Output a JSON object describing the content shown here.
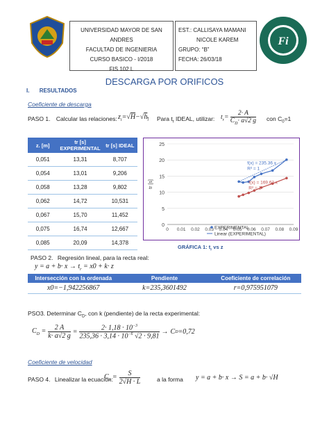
{
  "header": {
    "left_lines": [
      "UNIVERSIDAD MAYOR DE SAN ANDRES",
      "FACULTAD DE INGENIERIA",
      "CURSO BASICO - I/2018",
      "FIS 102 L"
    ],
    "right_lines": [
      "EST.:  CALLISAYA  MAMANI",
      "NICOLE  KAREM",
      "GRUPO:  “B”",
      "FECHA:  26/03/18"
    ]
  },
  "title": "DESCARGA POR ORIFICOS",
  "section": {
    "num": "I.",
    "label": "RESULTADOS"
  },
  "subtitle_descarga": "Coeficiente de descarga",
  "paso1": {
    "label": "PASO 1.",
    "text": "Calcular las relaciones:",
    "ideal": "Para t",
    "ideal2": " IDEAL, utilizar:",
    "tail": "con C",
    "tail2": "=1"
  },
  "table": {
    "headers": [
      "z. [m]",
      "tr [s] EXPERIMENTAL",
      "tr [s] IDEAL"
    ],
    "rows": [
      [
        "0,051",
        "13,31",
        "8,707"
      ],
      [
        "0,054",
        "13,01",
        "9,206"
      ],
      [
        "0,058",
        "13,28",
        "9,802"
      ],
      [
        "0,062",
        "14,72",
        "10,531"
      ],
      [
        "0,067",
        "15,70",
        "11,452"
      ],
      [
        "0,075",
        "16,74",
        "12,667"
      ],
      [
        "0,085",
        "20,09",
        "14,378"
      ]
    ]
  },
  "chart_data": {
    "type": "scatter",
    "ylabel": "tr [s]",
    "xticks": [
      "0",
      "0.01",
      "0.02",
      "0.03",
      "0.04",
      "0.05",
      "0.06",
      "0.07",
      "0.08",
      "0.09"
    ],
    "yticks": [
      "0",
      "5",
      "10",
      "15",
      "20",
      "25"
    ],
    "xlim": [
      0,
      0.09
    ],
    "ylim": [
      0,
      25
    ],
    "series": [
      {
        "name": "EXPERIMENTAL",
        "color": "#4472c4",
        "x": [
          0.051,
          0.054,
          0.058,
          0.062,
          0.067,
          0.075,
          0.085
        ],
        "y": [
          13.31,
          13.01,
          13.28,
          14.72,
          15.7,
          16.74,
          20.09
        ]
      },
      {
        "name": "IDEAL",
        "color": "#c0504d",
        "x": [
          0.051,
          0.054,
          0.058,
          0.062,
          0.067,
          0.075,
          0.085
        ],
        "y": [
          8.707,
          9.206,
          9.802,
          10.531,
          11.452,
          12.667,
          14.378
        ]
      }
    ],
    "fit1": "f(x) = 235.36 x",
    "r1": "R² = 1",
    "fit2": "f(x) = 169.62 x",
    "r2": "R² = 1",
    "legend1": "EXPERIMENTAL",
    "legend2": "Linear (EXPERIMENTAL)"
  },
  "grafica_caption": "GRÁFICA 1: t",
  "grafica_caption2": " vs z",
  "paso2": {
    "label": "PASO 2.",
    "text": "Regresión lineal, para la recta real:"
  },
  "regression": {
    "headers": [
      "Intersección con la ordenada",
      "Pendiente",
      "Coeficiente de correlación"
    ],
    "values": [
      "x0=−1,942256867",
      "k=235,3601492",
      "r=0,975951079"
    ]
  },
  "paso3": {
    "text": "PSO3. Determinar C",
    "text2": ", con k (pendiente) de la recta experimental:"
  },
  "cd_result": "C",
  "subtitle_velocidad": "Coeficiente de velocidad",
  "paso4": {
    "label": "PASO 4.",
    "text": "Linealizar la ecuación:",
    "text2": "a la forma"
  }
}
